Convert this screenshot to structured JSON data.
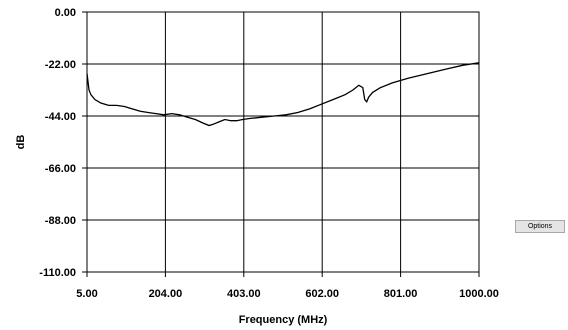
{
  "chart_data": {
    "type": "line",
    "title": "",
    "xlabel": "Frequency (MHz)",
    "ylabel": "dB",
    "xlim": [
      5,
      1000
    ],
    "ylim": [
      -110,
      0
    ],
    "x_ticks": [
      5,
      204,
      403,
      602,
      801,
      1000
    ],
    "x_tick_labels": [
      "5.00",
      "204.00",
      "403.00",
      "602.00",
      "801.00",
      "1000.00"
    ],
    "y_ticks": [
      0,
      -22,
      -44,
      -66,
      -88,
      -110
    ],
    "y_tick_labels": [
      "0.00",
      "-22.00",
      "-44.00",
      "-66.00",
      "-88.00",
      "-110.00"
    ],
    "grid": true,
    "legend": "none",
    "line_color": "#000000",
    "series": [
      {
        "x": [
          5,
          10,
          15,
          25,
          40,
          60,
          80,
          100,
          120,
          140,
          160,
          180,
          200,
          220,
          240,
          260,
          280,
          300,
          315,
          325,
          340,
          355,
          370,
          385,
          400,
          420,
          450,
          480,
          510,
          540,
          570,
          600,
          630,
          660,
          680,
          695,
          705,
          710,
          715,
          720,
          730,
          750,
          780,
          820,
          870,
          920,
          960,
          1000
        ],
        "y": [
          -26,
          -33,
          -35,
          -37,
          -38.5,
          -39.5,
          -39.5,
          -40,
          -41,
          -42,
          -42.5,
          -43,
          -43.5,
          -43,
          -43.5,
          -44.5,
          -45.5,
          -47,
          -48,
          -47.5,
          -46.5,
          -45.5,
          -46,
          -46,
          -45.5,
          -45,
          -44.5,
          -44,
          -43.5,
          -42.5,
          -41,
          -39,
          -37,
          -35,
          -33,
          -31,
          -32,
          -37,
          -38,
          -36,
          -34,
          -32,
          -30,
          -28,
          -26,
          -24,
          -22.5,
          -21.5
        ]
      }
    ]
  },
  "ui": {
    "options_label": "Options"
  }
}
